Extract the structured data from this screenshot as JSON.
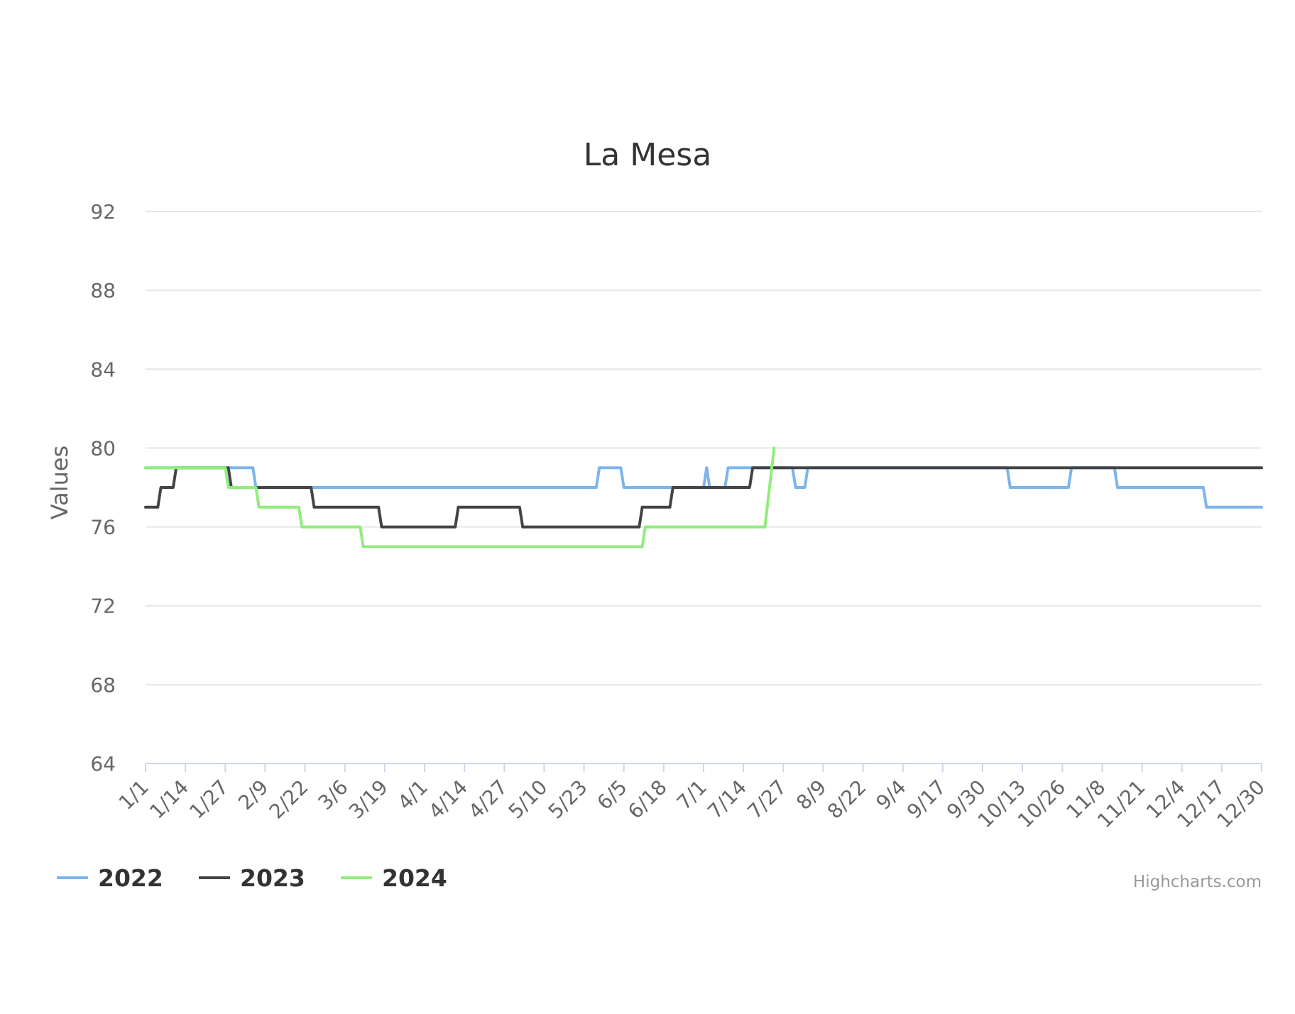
{
  "chart_data": {
    "type": "line",
    "title": "La Mesa",
    "xlabel": "",
    "ylabel": "Values",
    "ylim": [
      64,
      92
    ],
    "yticks": [
      64,
      68,
      72,
      76,
      80,
      84,
      88,
      92
    ],
    "grid": true,
    "legend_position": "bottom-left",
    "x_categories": [
      "1/1",
      "1/14",
      "1/27",
      "2/9",
      "2/22",
      "3/6",
      "3/19",
      "4/1",
      "4/14",
      "4/27",
      "5/10",
      "5/23",
      "6/5",
      "6/18",
      "7/1",
      "7/14",
      "7/27",
      "8/9",
      "8/22",
      "9/4",
      "9/17",
      "9/30",
      "10/13",
      "10/26",
      "11/8",
      "11/21",
      "12/4",
      "12/17",
      "12/30"
    ],
    "series": [
      {
        "name": "2022",
        "color": "#7cb5ec",
        "points": [
          [
            0,
            79
          ],
          [
            35,
            79
          ],
          [
            36,
            78
          ],
          [
            147,
            78
          ],
          [
            148,
            79
          ],
          [
            155,
            79
          ],
          [
            156,
            78
          ],
          [
            182,
            78
          ],
          [
            183,
            79
          ],
          [
            184,
            78
          ],
          [
            189,
            78
          ],
          [
            190,
            79
          ],
          [
            211,
            79
          ],
          [
            212,
            78
          ],
          [
            215,
            78
          ],
          [
            216,
            79
          ],
          [
            281,
            79
          ],
          [
            282,
            78
          ],
          [
            301,
            78
          ],
          [
            302,
            79
          ],
          [
            316,
            79
          ],
          [
            317,
            78
          ],
          [
            345,
            78
          ],
          [
            346,
            77
          ],
          [
            364,
            77
          ]
        ]
      },
      {
        "name": "2023",
        "color": "#434348",
        "points": [
          [
            0,
            77
          ],
          [
            4,
            77
          ],
          [
            5,
            78
          ],
          [
            9,
            78
          ],
          [
            10,
            79
          ],
          [
            27,
            79
          ],
          [
            28,
            78
          ],
          [
            54,
            78
          ],
          [
            55,
            77
          ],
          [
            60,
            77
          ],
          [
            63,
            77
          ],
          [
            76,
            77
          ],
          [
            77,
            76
          ],
          [
            101,
            76
          ],
          [
            102,
            77
          ],
          [
            122,
            77
          ],
          [
            123,
            76
          ],
          [
            161,
            76
          ],
          [
            162,
            77
          ],
          [
            171,
            77
          ],
          [
            172,
            78
          ],
          [
            197,
            78
          ],
          [
            198,
            79
          ],
          [
            364,
            79
          ]
        ]
      },
      {
        "name": "2024",
        "color": "#90ed7d",
        "points": [
          [
            0,
            79
          ],
          [
            26,
            79
          ],
          [
            27,
            78
          ],
          [
            36,
            78
          ],
          [
            37,
            77
          ],
          [
            50,
            77
          ],
          [
            51,
            76
          ],
          [
            70,
            76
          ],
          [
            71,
            75
          ],
          [
            162,
            75
          ],
          [
            163,
            76
          ],
          [
            202,
            76
          ],
          [
            205,
            80
          ]
        ]
      }
    ]
  },
  "credits": "Highcharts.com"
}
